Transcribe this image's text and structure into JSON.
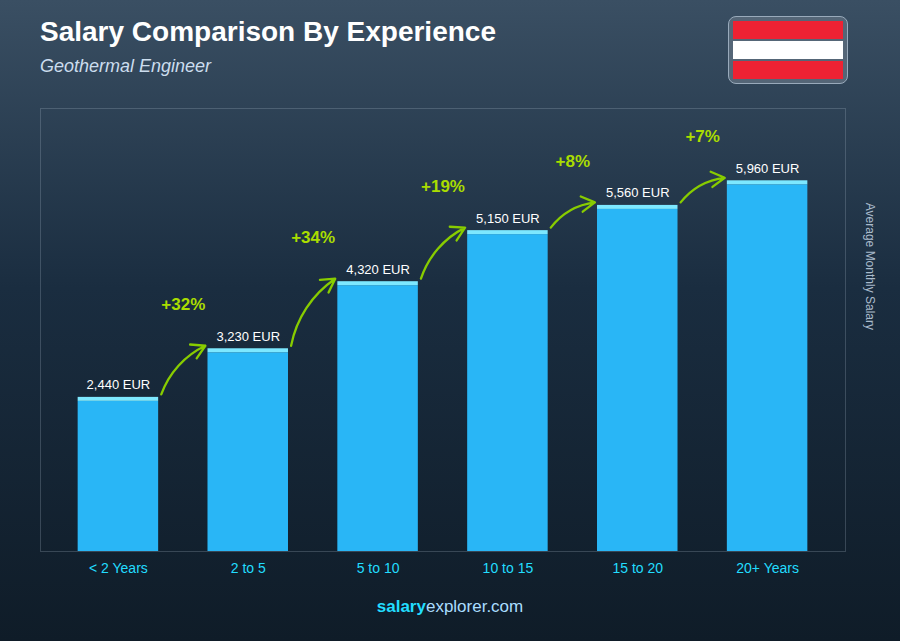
{
  "chart_data": {
    "type": "bar",
    "title": "Salary Comparison By Experience",
    "subtitle": "Geothermal Engineer",
    "ylabel": "Average Monthly Salary",
    "categories": [
      "< 2 Years",
      "2 to 5",
      "5 to 10",
      "10 to 15",
      "15 to 20",
      "20+ Years"
    ],
    "values": [
      2440,
      3230,
      4320,
      5150,
      5560,
      5960
    ],
    "value_labels": [
      "2,440 EUR",
      "3,230 EUR",
      "4,320 EUR",
      "5,150 EUR",
      "5,560 EUR",
      "5,960 EUR"
    ],
    "data_labels": true,
    "annotations": [
      "+32%",
      "+34%",
      "+19%",
      "+8%",
      "+7%"
    ],
    "caption": [
      "salary",
      "explorer.com"
    ],
    "color": "#29b6f6",
    "ylim": [
      0,
      7200
    ],
    "grid": false,
    "tick_labels": "x"
  }
}
